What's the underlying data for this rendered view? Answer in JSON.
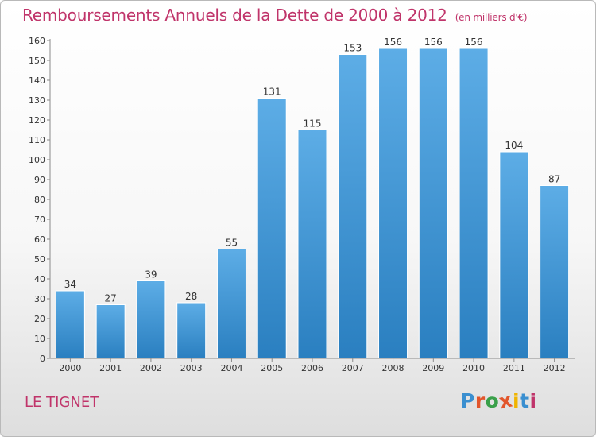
{
  "header": {
    "title": "Remboursements Annuels de la Dette de 2000 à 2012",
    "unit": "(en milliers d'€)"
  },
  "footer": {
    "commune": "LE TIGNET",
    "logo_text": "Proxiti"
  },
  "colors": {
    "title": "#c0346a",
    "bar_top": "#5dade6",
    "bar_bottom": "#2a7fc0",
    "logo_letters": [
      "#3a8fd0",
      "#e2562c",
      "#3aa04a",
      "#e2562c",
      "#f0b400",
      "#3a8fd0",
      "#c0346a"
    ]
  },
  "chart_data": {
    "type": "bar",
    "title": "Remboursements Annuels de la Dette de 2000 à 2012",
    "xlabel": "",
    "ylabel": "",
    "categories": [
      "2000",
      "2001",
      "2002",
      "2003",
      "2004",
      "2005",
      "2006",
      "2007",
      "2008",
      "2009",
      "2010",
      "2011",
      "2012"
    ],
    "values": [
      34,
      27,
      39,
      28,
      55,
      131,
      115,
      153,
      156,
      156,
      156,
      104,
      87
    ],
    "ylim": [
      0,
      160
    ],
    "yticks": [
      0,
      10,
      20,
      30,
      40,
      50,
      60,
      70,
      80,
      90,
      100,
      110,
      120,
      130,
      140,
      150,
      160
    ],
    "grid": false,
    "data_labels": true
  }
}
